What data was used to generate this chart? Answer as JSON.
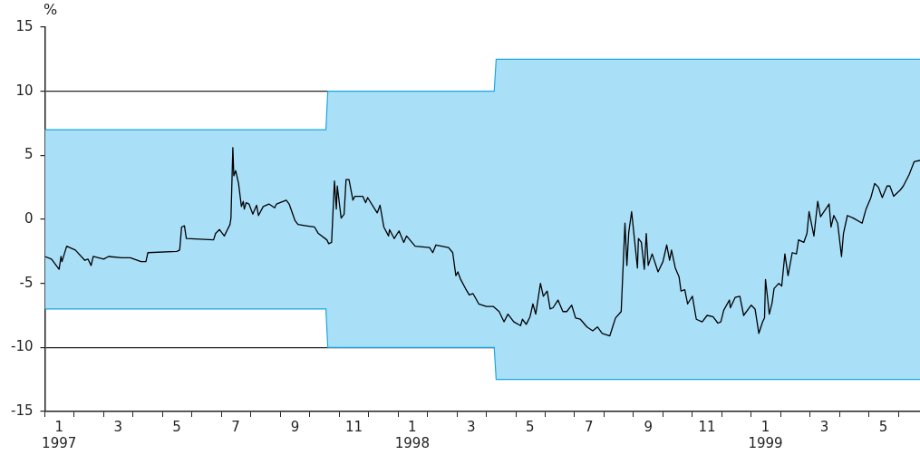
{
  "chart_data": {
    "type": "line",
    "ylabel": "%",
    "grid": "y",
    "legend": false,
    "marker": "none",
    "line_style": "solid",
    "xlim": [
      "1997-01-01",
      "1999-06-23"
    ],
    "ylim": [
      -15,
      15
    ],
    "yticks": [
      -15,
      -10,
      -5,
      0,
      5,
      10,
      15
    ],
    "xticks": [
      {
        "value": "1997-01",
        "label": null
      },
      {
        "value": "1997-01-16",
        "label": "1\n1997"
      },
      {
        "value": "1997-02",
        "label": null
      },
      {
        "value": "1997-03",
        "label": null
      },
      {
        "value": "1997-03-16",
        "label": "3"
      },
      {
        "value": "1997-04",
        "label": null
      },
      {
        "value": "1997-05",
        "label": null
      },
      {
        "value": "1997-05-16",
        "label": "5"
      },
      {
        "value": "1997-06",
        "label": null
      },
      {
        "value": "1997-07",
        "label": null
      },
      {
        "value": "1997-07-16",
        "label": "7"
      },
      {
        "value": "1997-08",
        "label": null
      },
      {
        "value": "1997-09",
        "label": null
      },
      {
        "value": "1997-09-16",
        "label": "9"
      },
      {
        "value": "1997-10",
        "label": null
      },
      {
        "value": "1997-11",
        "label": null
      },
      {
        "value": "1997-11-16",
        "label": "11"
      },
      {
        "value": "1997-12",
        "label": null
      },
      {
        "value": "1998-01",
        "label": null
      },
      {
        "value": "1998-01-16",
        "label": "1\n1998"
      },
      {
        "value": "1998-02",
        "label": null
      },
      {
        "value": "1998-03",
        "label": null
      },
      {
        "value": "1998-03-16",
        "label": "3"
      },
      {
        "value": "1998-04",
        "label": null
      },
      {
        "value": "1998-05",
        "label": null
      },
      {
        "value": "1998-05-16",
        "label": "5"
      },
      {
        "value": "1998-06",
        "label": null
      },
      {
        "value": "1998-07",
        "label": null
      },
      {
        "value": "1998-07-16",
        "label": "7"
      },
      {
        "value": "1998-08",
        "label": null
      },
      {
        "value": "1998-09",
        "label": null
      },
      {
        "value": "1998-09-16",
        "label": "9"
      },
      {
        "value": "1998-10",
        "label": null
      },
      {
        "value": "1998-11",
        "label": null
      },
      {
        "value": "1998-11-16",
        "label": "11"
      },
      {
        "value": "1998-12",
        "label": null
      },
      {
        "value": "1999-01",
        "label": null
      },
      {
        "value": "1999-01-16",
        "label": "1\n1999"
      },
      {
        "value": "1999-02",
        "label": null
      },
      {
        "value": "1999-03",
        "label": null
      },
      {
        "value": "1999-03-16",
        "label": "3"
      },
      {
        "value": "1999-04",
        "label": null
      },
      {
        "value": "1999-05",
        "label": null
      },
      {
        "value": "1999-05-16",
        "label": "5"
      },
      {
        "value": "1999-06",
        "label": null
      }
    ],
    "series": [
      {
        "type": "area",
        "color": "#aadff8",
        "x": [
          "1997-01-01",
          "1997-10-18",
          "1997-10-20",
          "1998-04-09",
          "1998-04-11",
          "1999-06-23"
        ],
        "values": [
          7,
          7,
          10,
          10,
          12.5,
          12.5
        ]
      },
      {
        "type": "area",
        "color": "#aadff8",
        "x": [
          "1997-01-01",
          "1997-10-18",
          "1997-10-20",
          "1998-04-09",
          "1998-04-11",
          "1999-06-23"
        ],
        "values": [
          -7,
          -7,
          -10,
          -10,
          -12.5,
          -12.5
        ]
      },
      {
        "color": "#000000",
        "x": [
          "1997-01-01",
          "1997-01-08",
          "1997-01-16",
          "1997-01-18",
          "1997-01-19",
          "1997-01-24",
          "1997-02-02",
          "1997-02-11",
          "1997-02-14",
          "1997-02-17",
          "1997-02-19",
          "1997-03-01",
          "1997-03-06",
          "1997-03-20",
          "1997-03-29",
          "1997-04-09",
          "1997-04-14",
          "1997-04-16",
          "1997-05-16",
          "1997-05-19",
          "1997-05-21",
          "1997-05-24",
          "1997-05-26",
          "1997-06-23",
          "1997-06-25",
          "1997-06-29",
          "1997-07-04",
          "1997-07-10",
          "1997-07-11",
          "1997-07-13",
          "1997-07-14",
          "1997-07-16",
          "1997-07-19",
          "1997-07-22",
          "1997-07-24",
          "1997-07-25",
          "1997-07-27",
          "1997-07-30",
          "1997-08-03",
          "1997-08-07",
          "1997-08-09",
          "1997-08-14",
          "1997-08-20",
          "1997-08-26",
          "1997-08-28",
          "1997-09-07",
          "1997-09-10",
          "1997-09-16",
          "1997-09-19",
          "1997-09-27",
          "1997-10-06",
          "1997-10-10",
          "1997-10-19",
          "1997-10-21",
          "1997-10-24",
          "1997-10-27",
          "1997-10-29",
          "1997-10-30",
          "1997-11-03",
          "1997-11-06",
          "1997-11-08",
          "1997-11-11",
          "1997-11-15",
          "1997-11-17",
          "1997-11-25",
          "1997-11-28",
          "1997-11-30",
          "1997-12-10",
          "1997-12-13",
          "1997-12-17",
          "1997-12-22",
          "1997-12-23",
          "1997-12-28",
          "1998-01-02",
          "1998-01-07",
          "1998-01-10",
          "1998-01-19",
          "1998-02-03",
          "1998-02-06",
          "1998-02-09",
          "1998-02-21",
          "1998-02-25",
          "1998-02-28",
          "1998-03-02",
          "1998-03-05",
          "1998-03-10",
          "1998-03-14",
          "1998-03-18",
          "1998-03-24",
          "1998-04-01",
          "1998-04-08",
          "1998-04-14",
          "1998-04-19",
          "1998-04-23",
          "1998-04-29",
          "1998-05-06",
          "1998-05-08",
          "1998-05-12",
          "1998-05-16",
          "1998-05-19",
          "1998-05-22",
          "1998-05-27",
          "1998-05-30",
          "1998-06-03",
          "1998-06-06",
          "1998-06-09",
          "1998-06-14",
          "1998-06-19",
          "1998-06-23",
          "1998-06-28",
          "1998-07-02",
          "1998-07-07",
          "1998-07-14",
          "1998-07-20",
          "1998-07-25",
          "1998-07-30",
          "1998-08-07",
          "1998-08-10",
          "1998-08-13",
          "1998-08-19",
          "1998-08-23",
          "1998-08-25",
          "1998-08-27",
          "1998-08-30",
          "1998-09-05",
          "1998-09-06",
          "1998-09-09",
          "1998-09-12",
          "1998-09-14",
          "1998-09-16",
          "1998-09-20",
          "1998-09-26",
          "1998-10-01",
          "1998-10-05",
          "1998-10-08",
          "1998-10-10",
          "1998-10-14",
          "1998-10-18",
          "1998-10-20",
          "1998-10-24",
          "1998-10-27",
          "1998-11-01",
          "1998-11-05",
          "1998-11-11",
          "1998-11-16",
          "1998-11-22",
          "1998-11-27",
          "1998-11-30",
          "1998-12-03",
          "1998-12-09",
          "1998-12-10",
          "1998-12-15",
          "1998-12-20",
          "1998-12-24",
          "1999-01-01",
          "1999-01-05",
          "1999-01-09",
          "1999-01-13",
          "1999-01-15",
          "1999-01-16",
          "1999-01-18",
          "1999-01-20",
          "1999-01-23",
          "1999-01-25",
          "1999-01-30",
          "1999-02-02",
          "1999-02-05",
          "1999-02-08",
          "1999-02-12",
          "1999-02-16",
          "1999-02-18",
          "1999-02-23",
          "1999-02-26",
          "1999-02-28",
          "1999-03-05",
          "1999-03-09",
          "1999-03-12",
          "1999-03-21",
          "1999-03-23",
          "1999-03-26",
          "1999-03-30",
          "1999-04-03",
          "1999-04-05",
          "1999-04-09",
          "1999-04-15",
          "1999-04-24",
          "1999-04-28",
          "1999-05-03",
          "1999-05-07",
          "1999-05-11",
          "1999-05-15",
          "1999-05-20",
          "1999-05-23",
          "1999-05-27",
          "1999-06-03",
          "1999-06-06",
          "1999-06-12",
          "1999-06-17",
          "1999-06-23"
        ],
        "values": [
          -2.9,
          -3.1,
          -3.9,
          -2.9,
          -3.3,
          -2.1,
          -2.4,
          -3.2,
          -3.1,
          -3.6,
          -2.9,
          -3.1,
          -2.9,
          -3,
          -3,
          -3.3,
          -3.3,
          -2.6,
          -2.5,
          -2.4,
          -0.6,
          -0.5,
          -1.5,
          -1.6,
          -1.1,
          -0.8,
          -1.3,
          -0.4,
          0.1,
          5.6,
          3.4,
          3.8,
          2.8,
          1,
          1.4,
          0.8,
          1.3,
          1.2,
          0.4,
          1.1,
          0.3,
          1,
          1.2,
          0.9,
          1.2,
          1.5,
          1.2,
          -0.1,
          -0.4,
          -0.5,
          -0.6,
          -1.1,
          -1.6,
          -1.9,
          -1.8,
          3,
          0.8,
          2.6,
          0.1,
          0.4,
          3.1,
          3.1,
          1.5,
          1.8,
          1.8,
          1.3,
          1.7,
          0.5,
          1.1,
          -0.6,
          -1.3,
          -0.8,
          -1.5,
          -0.9,
          -1.8,
          -1.3,
          -2.1,
          -2.2,
          -2.6,
          -2,
          -2.2,
          -2.6,
          -4.4,
          -4.1,
          -4.7,
          -5.4,
          -5.9,
          -5.8,
          -6.6,
          -6.8,
          -6.8,
          -7.2,
          -8,
          -7.4,
          -8,
          -8.3,
          -7.8,
          -8.2,
          -7.6,
          -6.6,
          -7.4,
          -5,
          -6,
          -5.6,
          -7,
          -6.9,
          -6.3,
          -7.2,
          -7.2,
          -6.7,
          -7.7,
          -7.8,
          -8.4,
          -8.7,
          -8.4,
          -8.9,
          -9.1,
          -8.4,
          -7.7,
          -7.2,
          -0.3,
          -3.6,
          -1,
          0.6,
          -3.8,
          -1.5,
          -1.8,
          -3.9,
          -1.1,
          -3.6,
          -2.7,
          -4.1,
          -3.3,
          -2,
          -3.2,
          -2.4,
          -3.8,
          -4.5,
          -5.6,
          -5.5,
          -6.6,
          -6,
          -7.8,
          -8,
          -7.5,
          -7.6,
          -8.1,
          -8,
          -7.1,
          -6.3,
          -6.9,
          -6.1,
          -6,
          -7.5,
          -6.7,
          -7,
          -8.9,
          -8,
          -7.7,
          -4.7,
          -6,
          -7.4,
          -6.5,
          -5.4,
          -5,
          -5.2,
          -2.7,
          -4.4,
          -2.6,
          -2.7,
          -1.6,
          -1.8,
          -1.1,
          0.6,
          -1.3,
          1.4,
          0.2,
          1.2,
          -0.6,
          0.3,
          -0.3,
          -2.9,
          -1.1,
          0.3,
          0.1,
          -0.3,
          0.8,
          1.7,
          2.8,
          2.5,
          1.7,
          2.6,
          2.6,
          1.8,
          2.3,
          2.6,
          3.5,
          4.5,
          4.6
        ]
      }
    ]
  }
}
